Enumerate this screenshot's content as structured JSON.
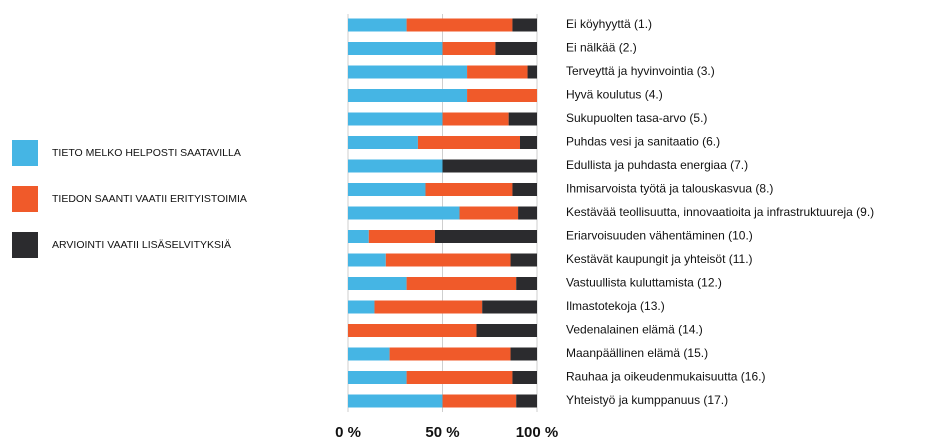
{
  "chart_data": {
    "type": "bar",
    "orientation": "horizontal",
    "stacked": true,
    "categories": [
      "Ei köyhyyttä (1.)",
      "Ei nälkää (2.)",
      "Terveyttä ja hyvinvointia (3.)",
      "Hyvä koulutus (4.)",
      "Sukupuolten tasa-arvo (5.)",
      "Puhdas vesi ja sanitaatio (6.)",
      "Edullista ja puhdasta energiaa (7.)",
      "Ihmisarvoista työtä ja talouskasvua (8.)",
      "Kestävää teollisuutta, innovaatioita ja infrastruktuureja (9.)",
      "Eriarvoisuuden vähentäminen (10.)",
      "Kestävät kaupungit ja yhteisöt (11.)",
      "Vastuullista kuluttamista (12.)",
      "Ilmastotekoja (13.)",
      "Vedenalainen elämä (14.)",
      "Maanpäällinen elämä (15.)",
      "Rauhaa ja oikeudenmukaisuutta (16.)",
      "Yhteistyö ja kumppanuus (17.)"
    ],
    "series": [
      {
        "name": "TIETO MELKO HELPOSTI SAATAVILLA",
        "color": "#45b5e4",
        "values": [
          31,
          50,
          63,
          63,
          50,
          37,
          50,
          41,
          59,
          11,
          20,
          31,
          14,
          0,
          22,
          31,
          50
        ]
      },
      {
        "name": "TIEDON SAANTI VAATII ERITYISTOIMIA",
        "color": "#f05a2a",
        "values": [
          56,
          28,
          32,
          37,
          35,
          54,
          0,
          46,
          31,
          35,
          66,
          58,
          57,
          68,
          64,
          56,
          39
        ]
      },
      {
        "name": "ARVIOINTI VAATII LISÄSELVITYKSIÄ",
        "color": "#2b2b2e",
        "values": [
          13,
          22,
          5,
          0,
          15,
          9,
          50,
          13,
          10,
          54,
          14,
          11,
          29,
          32,
          14,
          13,
          11
        ]
      }
    ],
    "xlim": [
      0,
      100
    ],
    "xticks": [
      {
        "value": 0,
        "label": "0 %"
      },
      {
        "value": 50,
        "label": "50 %"
      },
      {
        "value": 100,
        "label": "100 %"
      }
    ],
    "grid": true,
    "legend": "left"
  }
}
